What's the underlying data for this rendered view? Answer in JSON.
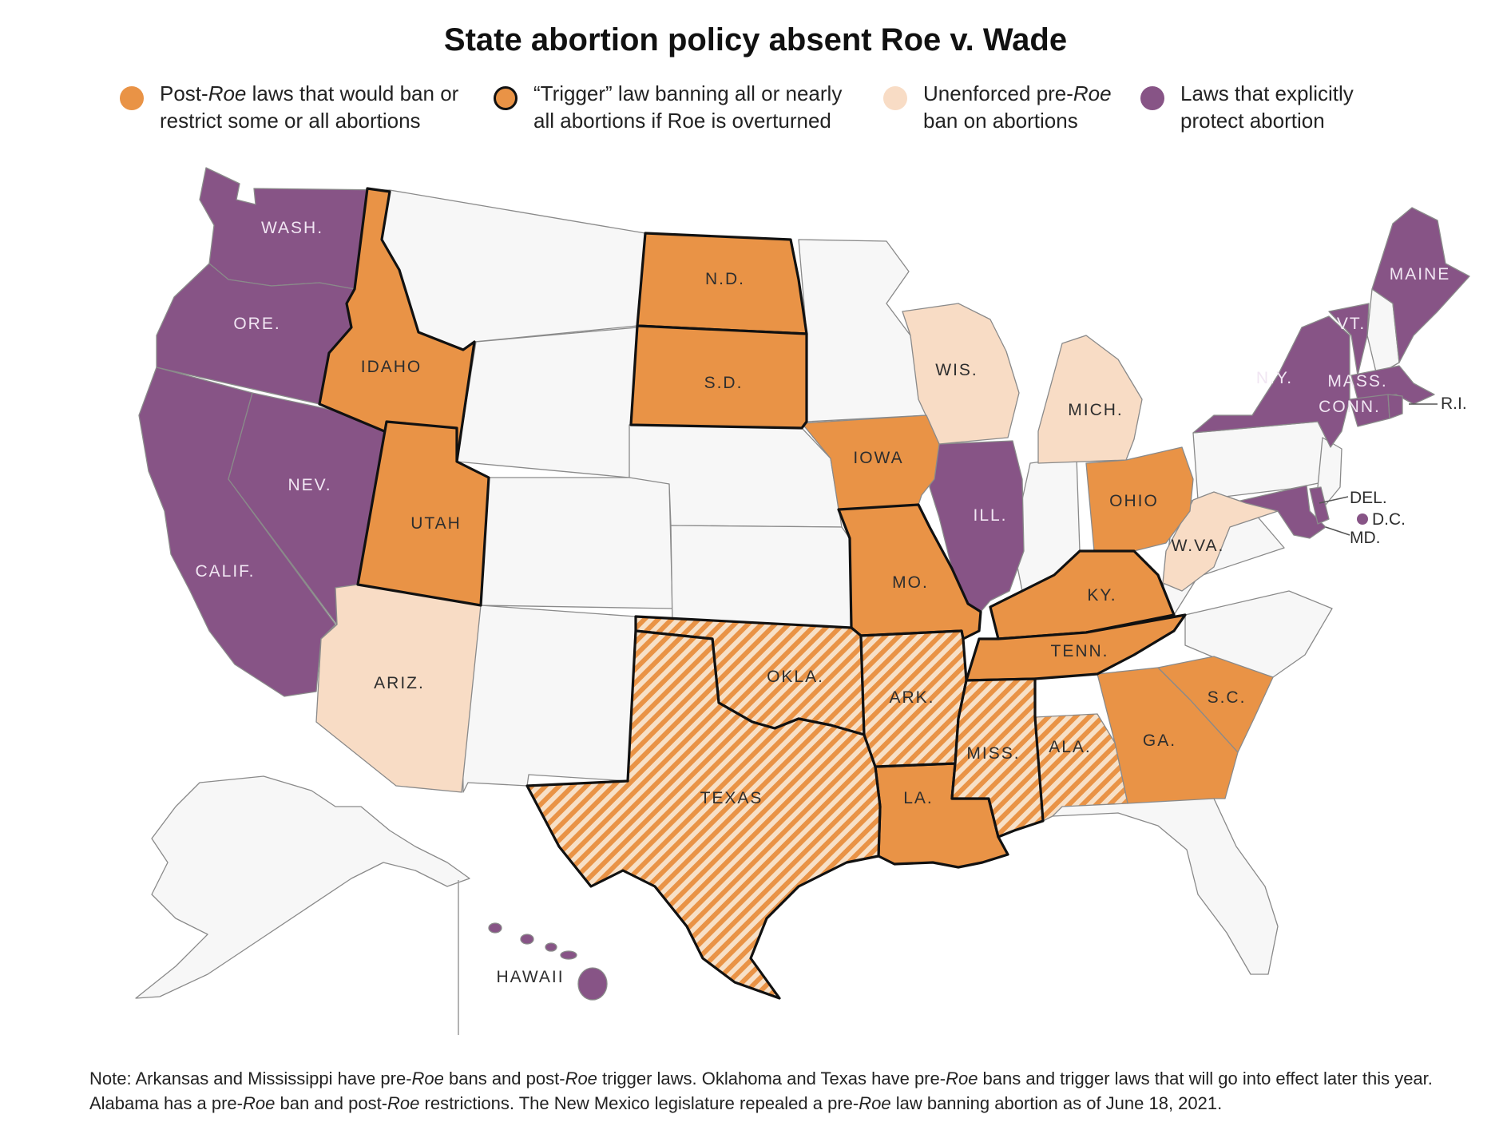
{
  "title": "State abortion policy absent Roe v. Wade",
  "colors": {
    "post_roe": "#e99346",
    "trigger": "#e99346",
    "trigger_outline": "#111111",
    "hatch_light": "#f7e0c7",
    "unenforced": "#f8dcc5",
    "protect": "#875486",
    "no_policy": "#f7f7f7",
    "border": "#8a8a8a"
  },
  "legend": [
    {
      "key": "post_roe",
      "pre": "Post-",
      "em": "Roe",
      "post": " laws that would ban or\nrestrict some or all abortions"
    },
    {
      "key": "trigger",
      "pre": "“Trigger” law banning all or nearly\nall abortions if Roe is overturned",
      "em": "",
      "post": ""
    },
    {
      "key": "unenforced",
      "pre": "Unenforced pre-",
      "em": "Roe",
      "post": "\nban on abortions"
    },
    {
      "key": "protect",
      "pre": "Laws that explicitly\nprotect abortion",
      "em": "",
      "post": ""
    }
  ],
  "states": [
    {
      "label": "WASH.",
      "category": "protect"
    },
    {
      "label": "ORE.",
      "category": "protect"
    },
    {
      "label": "CALIF.",
      "category": "protect"
    },
    {
      "label": "NEV.",
      "category": "protect"
    },
    {
      "label": "IDAHO",
      "category": "trigger"
    },
    {
      "label": "UTAH",
      "category": "trigger"
    },
    {
      "label": "ARIZ.",
      "category": "unenforced"
    },
    {
      "label": "N.D.",
      "category": "trigger"
    },
    {
      "label": "S.D.",
      "category": "trigger"
    },
    {
      "label": "OKLA.",
      "category": "trigger_unenforced"
    },
    {
      "label": "TEXAS",
      "category": "trigger_unenforced"
    },
    {
      "label": "IOWA",
      "category": "post_roe"
    },
    {
      "label": "MO.",
      "category": "trigger"
    },
    {
      "label": "ARK.",
      "category": "trigger_unenforced"
    },
    {
      "label": "LA.",
      "category": "trigger"
    },
    {
      "label": "WIS.",
      "category": "unenforced"
    },
    {
      "label": "MICH.",
      "category": "unenforced"
    },
    {
      "label": "ILL.",
      "category": "protect"
    },
    {
      "label": "KY.",
      "category": "trigger"
    },
    {
      "label": "TENN.",
      "category": "trigger"
    },
    {
      "label": "MISS.",
      "category": "trigger_unenforced"
    },
    {
      "label": "ALA.",
      "category": "post_unenforced"
    },
    {
      "label": "GA.",
      "category": "post_roe"
    },
    {
      "label": "S.C.",
      "category": "post_roe"
    },
    {
      "label": "OHIO",
      "category": "post_roe"
    },
    {
      "label": "W.VA.",
      "category": "unenforced"
    },
    {
      "label": "N.Y.",
      "category": "protect"
    },
    {
      "label": "VT.",
      "category": "protect"
    },
    {
      "label": "MAINE",
      "category": "protect"
    },
    {
      "label": "MASS.",
      "category": "protect"
    },
    {
      "label": "CONN.",
      "category": "protect"
    },
    {
      "label": "R.I.",
      "category": "protect"
    },
    {
      "label": "DEL.",
      "category": "protect"
    },
    {
      "label": "D.C.",
      "category": "protect"
    },
    {
      "label": "MD.",
      "category": "protect"
    },
    {
      "label": "HAWAII",
      "category": "protect"
    }
  ],
  "note": {
    "parts": [
      {
        "t": "Note: Arkansas and Mississippi have pre-"
      },
      {
        "t": "Roe",
        "em": true
      },
      {
        "t": " bans and post-"
      },
      {
        "t": "Roe",
        "em": true
      },
      {
        "t": " trigger laws. Oklahoma and Texas have pre-"
      },
      {
        "t": "Roe",
        "em": true
      },
      {
        "t": " bans and trigger laws that will go into effect later this year. Alabama has a pre-"
      },
      {
        "t": "Roe",
        "em": true
      },
      {
        "t": " ban and post-"
      },
      {
        "t": "Roe",
        "em": true
      },
      {
        "t": " restrictions. The New Mexico legislature repealed a pre-"
      },
      {
        "t": "Roe",
        "em": true
      },
      {
        "t": " law banning abortion as of June 18, 2021."
      }
    ]
  }
}
